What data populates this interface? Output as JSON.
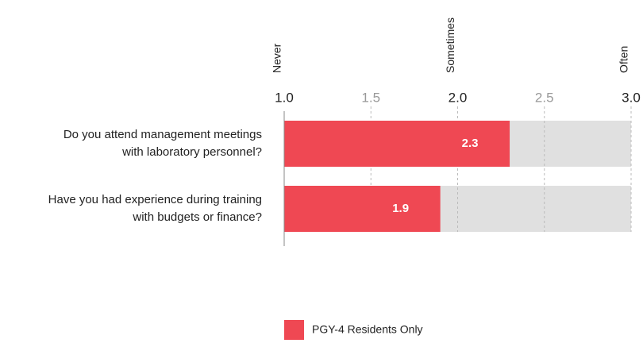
{
  "chart_data": {
    "type": "bar",
    "orientation": "horizontal",
    "categories": [
      "Do you attend management meetings\nwith laboratory personnel?",
      "Have you had experience during training\nwith budgets or finance?"
    ],
    "series": [
      {
        "name": "PGY-4 Residents Only",
        "color": "#ef4853",
        "values": [
          2.3,
          1.9
        ]
      }
    ],
    "track_color": "#e0e0e0",
    "xlim": [
      1,
      3
    ],
    "xticks": [
      {
        "value": 1,
        "label": "1.0"
      },
      {
        "value": 1.5,
        "label": "1.5"
      },
      {
        "value": 2,
        "label": "2.0"
      },
      {
        "value": 2.5,
        "label": "2.5"
      },
      {
        "value": 3,
        "label": "3.0"
      }
    ],
    "x2ticks": [
      {
        "value": 1,
        "label": "Never"
      },
      {
        "value": 2,
        "label": "Sometimes"
      },
      {
        "value": 3,
        "label": "Often"
      }
    ],
    "grid": true
  }
}
